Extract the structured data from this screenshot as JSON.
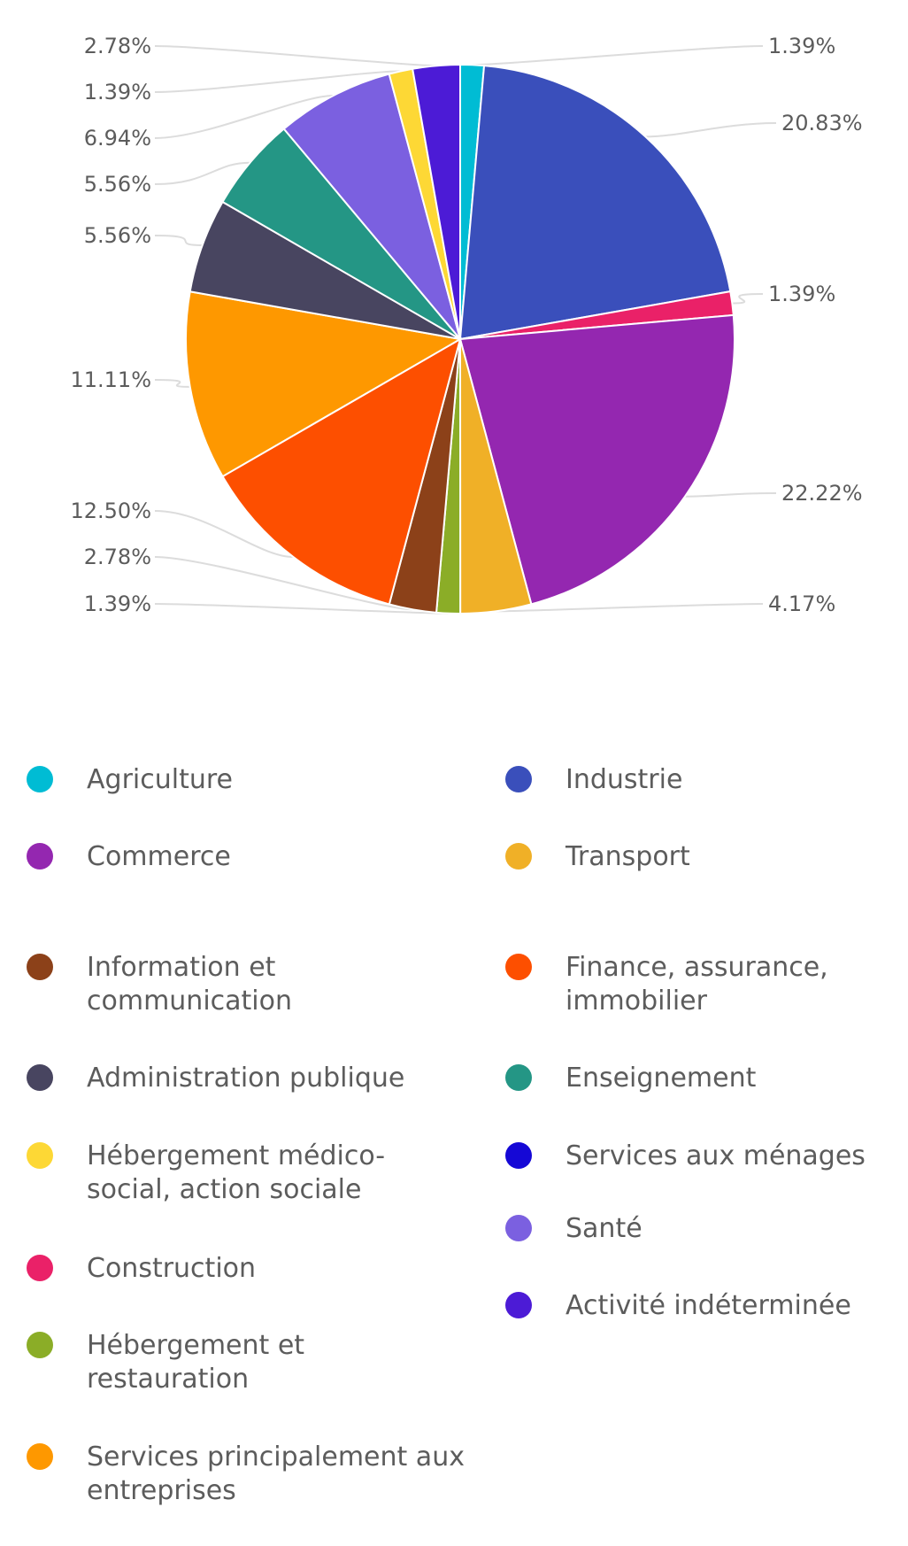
{
  "chart_data": {
    "type": "pie",
    "slices": [
      {
        "name": "Agriculture",
        "value": 1.39,
        "label": "1.39%",
        "color": "#00bcd4"
      },
      {
        "name": "Industrie",
        "value": 20.83,
        "label": "20.83%",
        "color": "#3a4fbb"
      },
      {
        "name": "Construction",
        "value": 1.39,
        "label": "1.39%",
        "color": "#ea2168"
      },
      {
        "name": "Commerce",
        "value": 22.22,
        "label": "22.22%",
        "color": "#9427b0"
      },
      {
        "name": "Transport",
        "value": 4.17,
        "label": "4.17%",
        "color": "#f0b027"
      },
      {
        "name": "Hébergement et restauration",
        "value": 1.39,
        "label": "1.39%",
        "color": "#8bad27"
      },
      {
        "name": "Information et communication",
        "value": 2.78,
        "label": "2.78%",
        "color": "#8c4119"
      },
      {
        "name": "Finance, assurance, immobilier",
        "value": 12.5,
        "label": "12.50%",
        "color": "#fd4f00"
      },
      {
        "name": "Services principalement aux entreprises",
        "value": 11.11,
        "label": "11.11%",
        "color": "#fe9800"
      },
      {
        "name": "Administration publique",
        "value": 5.56,
        "label": "5.56%",
        "color": "#484560"
      },
      {
        "name": "Enseignement",
        "value": 5.56,
        "label": "5.56%",
        "color": "#249685"
      },
      {
        "name": "Santé",
        "value": 6.94,
        "label": "6.94%",
        "color": "#7b60e0"
      },
      {
        "name": "Hébergement médico-social, action sociale",
        "value": 1.39,
        "label": "1.39%",
        "color": "#fdd835"
      },
      {
        "name": "Activité indéterminée",
        "value": 2.78,
        "label": "2.78%",
        "color": "#4c1bd6"
      }
    ],
    "legend": {
      "position": "bottom",
      "left_column": [
        {
          "label": "Agriculture",
          "color": "#00bcd4"
        },
        {
          "label": "Commerce",
          "color": "#9427b0"
        },
        {
          "label": "Information et communication",
          "color": "#8c4119"
        },
        {
          "label": "Administration publique",
          "color": "#484560"
        },
        {
          "label": "Hébergement médico-social, action sociale",
          "color": "#fdd835"
        },
        {
          "label": "Construction",
          "color": "#ea2168"
        },
        {
          "label": "Hébergement et restauration",
          "color": "#8bad27"
        },
        {
          "label": "Services principalement aux entreprises",
          "color": "#fe9800"
        }
      ],
      "right_column": [
        {
          "label": "Industrie",
          "color": "#3a4fbb"
        },
        {
          "label": "Transport",
          "color": "#f0b027"
        },
        {
          "label": "Finance, assurance, immobilier",
          "color": "#fd4f00"
        },
        {
          "label": "Enseignement",
          "color": "#249685"
        },
        {
          "label": "Services aux ménages",
          "color": "#1508d6"
        },
        {
          "label": "Santé",
          "color": "#7b60e0"
        },
        {
          "label": "Activité indéterminée",
          "color": "#4c1bd6"
        }
      ]
    }
  }
}
